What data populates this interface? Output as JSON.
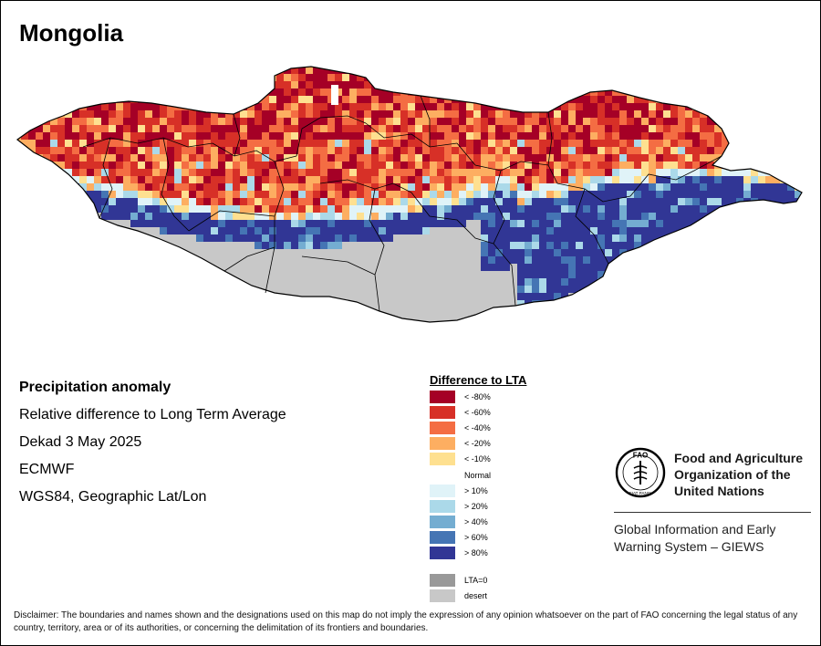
{
  "title": "Mongolia",
  "info": {
    "heading": "Precipitation anomaly",
    "line1": "Relative difference to Long Term Average",
    "line2": "Dekad 3 May 2025",
    "line3": "ECMWF",
    "line4": "WGS84, Geographic Lat/Lon"
  },
  "legend": {
    "title": "Difference to LTA",
    "items": [
      {
        "label": "< -80%",
        "color": "#a50026"
      },
      {
        "label": "< -60%",
        "color": "#d73027"
      },
      {
        "label": "< -40%",
        "color": "#f46d43"
      },
      {
        "label": "< -20%",
        "color": "#fdae61"
      },
      {
        "label": "< -10%",
        "color": "#fee090"
      },
      {
        "label": "Normal",
        "color": "#ffffff"
      },
      {
        "label": "> 10%",
        "color": "#e0f3f8"
      },
      {
        "label": "> 20%",
        "color": "#abd9e9"
      },
      {
        "label": "> 40%",
        "color": "#74add1"
      },
      {
        "label": "> 60%",
        "color": "#4575b4"
      },
      {
        "label": "> 80%",
        "color": "#313695"
      },
      {
        "label": "LTA=0",
        "color": "#999999"
      },
      {
        "label": "desert",
        "color": "#c8c8c8"
      }
    ]
  },
  "logo": {
    "org_line1": "Food and Agriculture",
    "org_line2": "Organization of the",
    "org_line3": "United Nations",
    "logo_letters": "FAO",
    "logo_motto": "FIAT PANIS",
    "system_line1": "Global Information and Early",
    "system_line2": "Warning System – GIEWS"
  },
  "disclaimer": "Disclaimer: The boundaries and names shown and the designations used on this map do not imply the expression of any opinion whatsoever on the part of FAO concerning the legal status of any country, territory, area or of its authorities, or concerning the delimitation of its frontiers and boundaries.",
  "map_colors": {
    "dry_extreme": "#a50026",
    "dry_severe": "#d73027",
    "dry_moderate": "#f46d43",
    "dry_light": "#fdae61",
    "dry_slight": "#fee090",
    "wet_slight": "#e0f3f8",
    "wet_light": "#abd9e9",
    "wet_moderate": "#74add1",
    "wet_strong": "#4575b4",
    "wet_extreme": "#313695",
    "desert": "#c8c8c8",
    "boundary": "#000000"
  }
}
